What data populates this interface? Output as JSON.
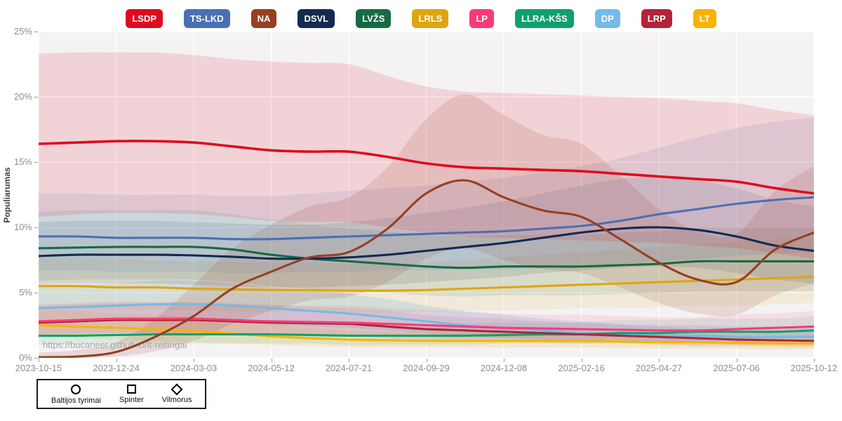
{
  "watermark": "https://bucaneer.github.io/lt-reitingai",
  "y_axis": {
    "label": "Populiarumas",
    "ticks": [
      "0%",
      "5%",
      "10%",
      "15%",
      "20%",
      "25%"
    ],
    "tick_values": [
      0,
      5,
      10,
      15,
      20,
      25
    ]
  },
  "x_axis": {
    "tick_labels": [
      "2023-10-15",
      "2023-12-24",
      "2024-03-03",
      "2024-05-12",
      "2024-07-21",
      "2024-09-29",
      "2024-12-08",
      "2025-02-16",
      "2025-04-27",
      "2025-07-06",
      "2025-10-12"
    ]
  },
  "source_legend": {
    "items": [
      {
        "id": "baltijos-tyrimai",
        "label": "Baltijos tyrimai",
        "marker": "circle"
      },
      {
        "id": "spinter",
        "label": "Spinter",
        "marker": "square"
      },
      {
        "id": "vilmorus",
        "label": "Vilmorus",
        "marker": "diamond"
      }
    ]
  },
  "colors": {
    "plot_background": "#f4f2f3",
    "gridline": "#ffffff",
    "axis_text": "#8f8f8f",
    "axis_label": "#3d3d3d",
    "watermark_text": "#a6a6a6",
    "legend_box_border": "#1f1f1f"
  },
  "chart_data": {
    "type": "line",
    "title": "",
    "xlabel": "",
    "ylabel": "Populiarumas",
    "ylim": [
      0,
      25
    ],
    "grid": true,
    "legend_position": "top",
    "x_tick_labels": [
      "2023-10-15",
      "2023-12-24",
      "2024-03-03",
      "2024-05-12",
      "2024-07-21",
      "2024-09-29",
      "2024-12-08",
      "2025-02-16",
      "2025-04-27",
      "2025-07-06",
      "2025-10-12"
    ],
    "x": [
      "2023-10-15",
      "2023-11-19",
      "2023-12-24",
      "2024-01-28",
      "2024-03-03",
      "2024-04-07",
      "2024-05-12",
      "2024-06-16",
      "2024-07-21",
      "2024-08-25",
      "2024-09-29",
      "2024-11-03",
      "2024-12-08",
      "2025-01-12",
      "2025-02-16",
      "2025-03-23",
      "2025-04-27",
      "2025-06-01",
      "2025-07-06",
      "2025-08-24",
      "2025-10-12"
    ],
    "draw_order": [
      "DP",
      "LT",
      "LLRA-KŠS",
      "LRP",
      "LP",
      "LRLS",
      "LVŽS",
      "DSVL",
      "TS-LKD",
      "NA",
      "LSDP"
    ],
    "series": [
      {
        "id": "lsdp",
        "label": "LSDP",
        "color": "#de0b1e",
        "band_opacity": 0.13,
        "values": [
          16.4,
          16.5,
          16.6,
          16.6,
          16.5,
          16.2,
          15.9,
          15.8,
          15.8,
          15.4,
          14.9,
          14.6,
          14.5,
          14.4,
          14.3,
          14.1,
          13.9,
          13.7,
          13.5,
          13.0,
          12.6
        ],
        "band_lower": [
          10.8,
          11.0,
          11.1,
          11.1,
          11.0,
          10.8,
          10.5,
          10.4,
          10.4,
          10.0,
          9.6,
          9.3,
          9.2,
          9.1,
          9.0,
          8.9,
          8.8,
          8.6,
          8.4,
          8.0,
          7.6
        ],
        "band_upper": [
          23.3,
          23.4,
          23.4,
          23.4,
          23.2,
          22.9,
          22.7,
          22.6,
          22.5,
          21.6,
          20.8,
          20.4,
          20.3,
          20.2,
          20.1,
          20.0,
          19.9,
          19.7,
          19.5,
          19.0,
          18.6
        ]
      },
      {
        "id": "tslkd",
        "label": "TS-LKD",
        "color": "#4a70b4",
        "band_opacity": 0.12,
        "values": [
          9.3,
          9.3,
          9.2,
          9.2,
          9.2,
          9.1,
          9.1,
          9.2,
          9.3,
          9.4,
          9.5,
          9.6,
          9.7,
          9.9,
          10.1,
          10.5,
          11.0,
          11.4,
          11.8,
          12.1,
          12.3
        ],
        "band_lower": [
          6.7,
          6.7,
          6.6,
          6.6,
          6.6,
          6.5,
          6.5,
          6.6,
          6.6,
          6.7,
          6.7,
          6.8,
          6.8,
          6.9,
          7.0,
          7.2,
          7.4,
          7.6,
          7.8,
          8.0,
          8.1
        ],
        "band_upper": [
          12.6,
          12.6,
          12.5,
          12.5,
          12.5,
          12.4,
          12.4,
          12.6,
          12.8,
          13.0,
          13.2,
          13.5,
          13.8,
          14.2,
          14.7,
          15.3,
          16.1,
          16.9,
          17.6,
          18.1,
          18.4
        ]
      },
      {
        "id": "na",
        "label": "NA",
        "color": "#963f23",
        "band_opacity": 0.14,
        "values": [
          0.05,
          0.1,
          0.45,
          1.6,
          3.2,
          5.3,
          6.6,
          7.7,
          8.1,
          9.9,
          12.6,
          13.6,
          12.3,
          11.3,
          10.8,
          9.1,
          7.3,
          6.0,
          5.8,
          8.3,
          9.6
        ],
        "band_lower": [
          0.0,
          0.0,
          0.1,
          0.5,
          1.3,
          2.6,
          3.6,
          4.4,
          4.7,
          5.8,
          7.6,
          8.4,
          7.5,
          6.8,
          6.5,
          5.4,
          4.2,
          3.4,
          3.3,
          4.8,
          5.7
        ],
        "band_upper": [
          0.4,
          0.6,
          1.2,
          3.0,
          5.6,
          8.4,
          10.2,
          11.6,
          12.3,
          14.6,
          18.3,
          20.2,
          18.6,
          17.1,
          16.4,
          14.0,
          11.4,
          9.7,
          9.5,
          12.8,
          14.7
        ]
      },
      {
        "id": "dsvl",
        "label": "DSVL",
        "color": "#122a51",
        "band_opacity": 0.11,
        "values": [
          7.8,
          7.9,
          7.9,
          7.9,
          7.85,
          7.75,
          7.6,
          7.6,
          7.7,
          7.9,
          8.2,
          8.5,
          8.8,
          9.2,
          9.6,
          9.9,
          10.0,
          9.8,
          9.3,
          8.6,
          8.2
        ],
        "band_lower": [
          5.6,
          5.7,
          5.7,
          5.7,
          5.6,
          5.5,
          5.4,
          5.4,
          5.5,
          5.6,
          5.8,
          6.0,
          6.2,
          6.5,
          6.7,
          6.9,
          7.0,
          6.9,
          6.5,
          6.0,
          5.7
        ],
        "band_upper": [
          10.4,
          10.5,
          10.5,
          10.5,
          10.4,
          10.3,
          10.2,
          10.2,
          10.4,
          10.7,
          11.1,
          11.5,
          12.0,
          12.6,
          13.2,
          13.7,
          13.9,
          13.6,
          13.0,
          12.1,
          11.6
        ]
      },
      {
        "id": "lvzs",
        "label": "LVŽS",
        "color": "#176a42",
        "band_opacity": 0.1,
        "values": [
          8.4,
          8.45,
          8.5,
          8.5,
          8.5,
          8.3,
          7.9,
          7.6,
          7.4,
          7.2,
          7.0,
          6.9,
          7.0,
          7.0,
          7.0,
          7.1,
          7.2,
          7.4,
          7.4,
          7.4,
          7.4
        ],
        "band_lower": [
          5.9,
          6.0,
          6.0,
          6.0,
          6.0,
          5.8,
          5.5,
          5.3,
          5.1,
          5.0,
          4.8,
          4.7,
          4.8,
          4.8,
          4.8,
          4.9,
          5.0,
          5.1,
          5.1,
          5.1,
          5.1
        ],
        "band_upper": [
          11.2,
          11.3,
          11.3,
          11.3,
          11.3,
          11.0,
          10.6,
          10.2,
          9.9,
          9.7,
          9.4,
          9.3,
          9.4,
          9.4,
          9.4,
          9.6,
          9.7,
          10.0,
          10.0,
          10.0,
          10.0
        ]
      },
      {
        "id": "lrls",
        "label": "LRLS",
        "color": "#dfa511",
        "band_opacity": 0.11,
        "values": [
          5.5,
          5.5,
          5.4,
          5.4,
          5.3,
          5.25,
          5.2,
          5.2,
          5.15,
          5.15,
          5.2,
          5.3,
          5.4,
          5.5,
          5.6,
          5.7,
          5.8,
          5.9,
          6.0,
          6.1,
          6.2
        ],
        "band_lower": [
          3.8,
          3.8,
          3.7,
          3.7,
          3.6,
          3.6,
          3.5,
          3.5,
          3.5,
          3.5,
          3.5,
          3.6,
          3.6,
          3.7,
          3.8,
          3.8,
          3.9,
          4.0,
          4.0,
          4.1,
          4.2
        ],
        "band_upper": [
          7.7,
          7.7,
          7.6,
          7.5,
          7.4,
          7.35,
          7.3,
          7.3,
          7.2,
          7.2,
          7.3,
          7.5,
          7.7,
          7.9,
          8.1,
          8.3,
          8.5,
          8.7,
          8.9,
          9.1,
          9.2
        ]
      },
      {
        "id": "lp",
        "label": "LP",
        "color": "#fa3a76",
        "band_opacity": 0.11,
        "values": [
          2.8,
          2.9,
          3.0,
          3.0,
          3.0,
          2.9,
          2.8,
          2.75,
          2.7,
          2.6,
          2.5,
          2.4,
          2.3,
          2.25,
          2.2,
          2.15,
          2.1,
          2.1,
          2.2,
          2.3,
          2.4
        ],
        "band_lower": [
          1.8,
          1.9,
          1.9,
          1.9,
          1.9,
          1.9,
          1.8,
          1.8,
          1.7,
          1.7,
          1.6,
          1.5,
          1.5,
          1.4,
          1.4,
          1.4,
          1.3,
          1.3,
          1.4,
          1.5,
          1.5
        ],
        "band_upper": [
          4.1,
          4.2,
          4.3,
          4.3,
          4.3,
          4.2,
          4.1,
          4.0,
          4.0,
          3.8,
          3.7,
          3.5,
          3.4,
          3.3,
          3.3,
          3.2,
          3.1,
          3.1,
          3.3,
          3.4,
          3.6
        ]
      },
      {
        "id": "llrakss",
        "label": "LLRA-KŠS",
        "color": "#0ea06d",
        "band_opacity": 0.1,
        "values": [
          1.7,
          1.7,
          1.75,
          1.8,
          1.8,
          1.8,
          1.8,
          1.75,
          1.7,
          1.7,
          1.7,
          1.7,
          1.75,
          1.8,
          1.8,
          1.9,
          1.9,
          2.0,
          2.0,
          2.0,
          2.1
        ],
        "band_lower": [
          1.0,
          1.0,
          1.1,
          1.1,
          1.1,
          1.1,
          1.1,
          1.1,
          1.0,
          1.0,
          1.0,
          1.0,
          1.1,
          1.1,
          1.1,
          1.2,
          1.2,
          1.2,
          1.2,
          1.2,
          1.3
        ],
        "band_upper": [
          2.6,
          2.6,
          2.7,
          2.7,
          2.7,
          2.7,
          2.7,
          2.7,
          2.6,
          2.6,
          2.6,
          2.6,
          2.7,
          2.7,
          2.7,
          2.9,
          2.9,
          3.0,
          3.0,
          3.0,
          3.2
        ]
      },
      {
        "id": "dp",
        "label": "DP",
        "color": "#74bbe8",
        "band_opacity": 0.25,
        "values": [
          3.8,
          3.9,
          4.0,
          4.1,
          4.1,
          4.0,
          3.8,
          3.6,
          3.4,
          3.1,
          2.8,
          2.5,
          2.3,
          2.1,
          1.9,
          1.8,
          1.7,
          1.7,
          1.6,
          1.6,
          1.6
        ],
        "band_lower": [
          2.5,
          2.6,
          2.7,
          2.7,
          2.7,
          2.7,
          2.5,
          2.4,
          2.3,
          2.1,
          1.9,
          1.7,
          1.5,
          1.4,
          1.3,
          1.2,
          1.1,
          1.1,
          1.0,
          1.0,
          1.0
        ],
        "band_upper": [
          5.4,
          5.6,
          5.7,
          5.9,
          5.9,
          5.7,
          5.4,
          5.2,
          4.9,
          4.5,
          4.0,
          3.6,
          3.3,
          3.0,
          2.8,
          2.6,
          2.5,
          2.5,
          2.4,
          2.4,
          2.4
        ]
      },
      {
        "id": "lrp",
        "label": "LRP",
        "color": "#b22438",
        "band_opacity": 0.1,
        "values": [
          2.7,
          2.8,
          2.9,
          2.9,
          2.9,
          2.8,
          2.7,
          2.65,
          2.6,
          2.4,
          2.2,
          2.1,
          2.0,
          1.9,
          1.8,
          1.7,
          1.6,
          1.5,
          1.4,
          1.35,
          1.3
        ],
        "band_lower": [
          1.7,
          1.8,
          1.9,
          1.9,
          1.9,
          1.8,
          1.7,
          1.7,
          1.7,
          1.5,
          1.4,
          1.3,
          1.3,
          1.2,
          1.1,
          1.1,
          1.0,
          0.9,
          0.9,
          0.85,
          0.8
        ],
        "band_upper": [
          4.0,
          4.1,
          4.2,
          4.2,
          4.2,
          4.1,
          4.0,
          3.9,
          3.8,
          3.6,
          3.3,
          3.1,
          3.0,
          2.8,
          2.7,
          2.5,
          2.4,
          2.2,
          2.1,
          2.0,
          2.0
        ]
      },
      {
        "id": "lt",
        "label": "LT",
        "color": "#f8b300",
        "band_opacity": 0.16,
        "values": [
          2.5,
          2.4,
          2.3,
          2.2,
          2.05,
          1.85,
          1.65,
          1.5,
          1.4,
          1.35,
          1.3,
          1.3,
          1.3,
          1.3,
          1.3,
          1.25,
          1.2,
          1.2,
          1.15,
          1.1,
          1.1
        ],
        "band_lower": [
          1.5,
          1.5,
          1.4,
          1.3,
          1.2,
          1.1,
          1.0,
          0.9,
          0.85,
          0.8,
          0.8,
          0.8,
          0.8,
          0.8,
          0.8,
          0.75,
          0.7,
          0.7,
          0.7,
          0.65,
          0.65
        ],
        "band_upper": [
          3.7,
          3.6,
          3.4,
          3.3,
          3.1,
          2.8,
          2.5,
          2.3,
          2.1,
          2.0,
          2.0,
          2.0,
          2.0,
          2.0,
          2.0,
          1.9,
          1.8,
          1.8,
          1.75,
          1.7,
          1.7
        ]
      }
    ]
  }
}
